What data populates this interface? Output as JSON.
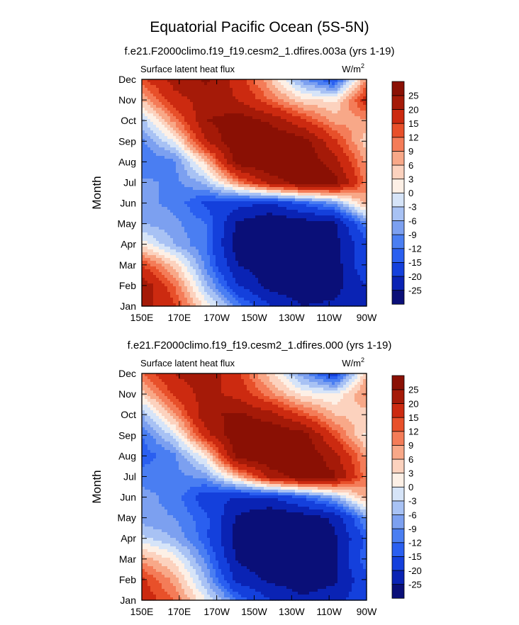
{
  "figure": {
    "title": "Equatorial Pacific Ocean (5S-5N)"
  },
  "colorscale": {
    "levels": [
      -25,
      -20,
      -15,
      -12,
      -9,
      -6,
      -3,
      0,
      3,
      6,
      9,
      12,
      15,
      20,
      25
    ],
    "label_texts": [
      "-25",
      "-20",
      "-15",
      "-12",
      "-9",
      "-6",
      "-3",
      "0",
      "3",
      "6",
      "9",
      "12",
      "15",
      "20",
      "25"
    ],
    "colors": [
      "#0a0f78",
      "#0a23b4",
      "#1440dc",
      "#2a5ff0",
      "#4a7ef2",
      "#7ca0f0",
      "#a8c2f4",
      "#d6e4f8",
      "#fdf0e6",
      "#fcd2be",
      "#f8a888",
      "#f47c58",
      "#e8502a",
      "#cc2a10",
      "#a51a08",
      "#8a1004"
    ]
  },
  "chart_data": [
    {
      "type": "heatmap",
      "title": "f.e21.F2000climo.f19_f19.cesm2_1.dfires.003a (yrs 1-19)",
      "left_label": "Surface latent heat flux",
      "units_base": "W/m",
      "units_exp": "2",
      "xlabel": "",
      "ylabel": "Month",
      "x": [
        "150E",
        "170E",
        "170W",
        "150W",
        "130W",
        "110W",
        "90W"
      ],
      "y": [
        "Jan",
        "Feb",
        "Mar",
        "Apr",
        "May",
        "Jun",
        "Jul",
        "Aug",
        "Sep",
        "Oct",
        "Nov",
        "Dec"
      ],
      "xlim": [
        150,
        270
      ],
      "values": [
        [
          22,
          16,
          2,
          -10,
          -20,
          -25,
          -24,
          -22
        ],
        [
          24,
          12,
          -5,
          -20,
          -27,
          -28,
          -27,
          -20
        ],
        [
          15,
          5,
          -10,
          -25,
          -28,
          -28,
          -28,
          -15
        ],
        [
          2,
          -6,
          -12,
          -28,
          -30,
          -29,
          -27,
          -16
        ],
        [
          -6,
          -8,
          -12,
          -26,
          -30,
          -28,
          -26,
          -10
        ],
        [
          -8,
          -10,
          -16,
          -18,
          -20,
          -14,
          -8,
          8
        ],
        [
          -8,
          -10,
          -5,
          10,
          22,
          28,
          28,
          10
        ],
        [
          -12,
          -10,
          5,
          28,
          30,
          30,
          22,
          8
        ],
        [
          -10,
          0,
          20,
          30,
          30,
          28,
          16,
          4
        ],
        [
          -4,
          10,
          25,
          28,
          24,
          16,
          8,
          8
        ],
        [
          6,
          18,
          22,
          20,
          12,
          4,
          2,
          18
        ],
        [
          14,
          22,
          26,
          18,
          6,
          -8,
          -16,
          10
        ]
      ]
    },
    {
      "type": "heatmap",
      "title": "f.e21.F2000climo.f19_f19.cesm2_1.dfires.000 (yrs 1-19)",
      "left_label": "Surface latent heat flux",
      "units_base": "W/m",
      "units_exp": "2",
      "xlabel": "",
      "ylabel": "Month",
      "x": [
        "150E",
        "170E",
        "170W",
        "150W",
        "130W",
        "110W",
        "90W"
      ],
      "y": [
        "Jan",
        "Feb",
        "Mar",
        "Apr",
        "May",
        "Jun",
        "Jul",
        "Aug",
        "Sep",
        "Oct",
        "Nov",
        "Dec"
      ],
      "xlim": [
        150,
        270
      ],
      "values": [
        [
          18,
          12,
          0,
          -12,
          -20,
          -24,
          -22,
          -16
        ],
        [
          16,
          8,
          -6,
          -22,
          -26,
          -28,
          -26,
          -16
        ],
        [
          8,
          2,
          -10,
          -26,
          -28,
          -28,
          -26,
          -12
        ],
        [
          -2,
          -6,
          -14,
          -28,
          -30,
          -29,
          -26,
          -14
        ],
        [
          -8,
          -9,
          -14,
          -26,
          -30,
          -28,
          -24,
          -8
        ],
        [
          -8,
          -10,
          -18,
          -20,
          -20,
          -14,
          -6,
          8
        ],
        [
          -10,
          -10,
          -8,
          6,
          22,
          28,
          26,
          10
        ],
        [
          -14,
          -10,
          2,
          28,
          30,
          30,
          22,
          8
        ],
        [
          -12,
          -2,
          18,
          30,
          30,
          28,
          14,
          2
        ],
        [
          -6,
          8,
          24,
          26,
          22,
          14,
          6,
          4
        ],
        [
          4,
          16,
          22,
          18,
          10,
          2,
          0,
          10
        ],
        [
          12,
          20,
          24,
          16,
          4,
          -8,
          -18,
          6
        ]
      ]
    }
  ]
}
